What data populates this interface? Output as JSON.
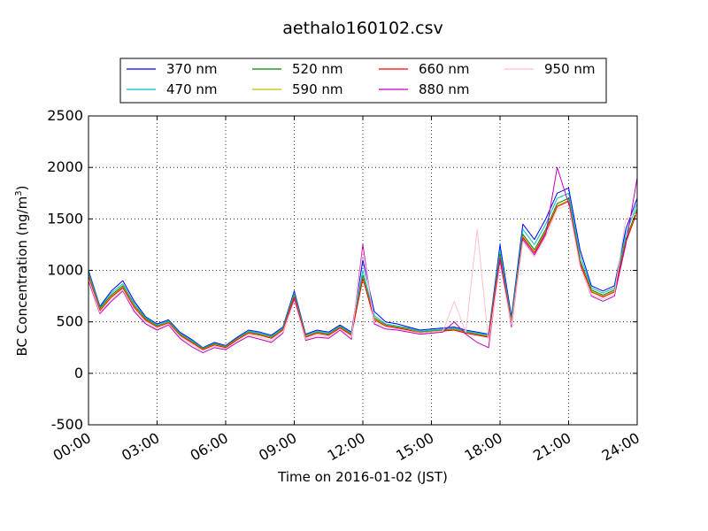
{
  "chart_data": {
    "type": "line",
    "title": "aethalo160102.csv",
    "xlabel": "Time on 2016-01-02 (JST)",
    "ylabel_main": "BC Concentration (ng/m",
    "ylabel_sup": "3",
    "ylabel_close": ")",
    "xlim": [
      "00:00",
      "24:00"
    ],
    "ylim": [
      -500,
      2500
    ],
    "grid": true,
    "legend_position": "top-center",
    "x_ticks": [
      "00:00",
      "03:00",
      "06:00",
      "09:00",
      "12:00",
      "15:00",
      "18:00",
      "21:00",
      "24:00"
    ],
    "y_ticks": [
      -500,
      0,
      500,
      1000,
      1500,
      2000,
      2500
    ],
    "x": [
      "00:00",
      "00:30",
      "01:00",
      "01:30",
      "02:00",
      "02:30",
      "03:00",
      "03:30",
      "04:00",
      "04:30",
      "05:00",
      "05:30",
      "06:00",
      "06:30",
      "07:00",
      "07:30",
      "08:00",
      "08:30",
      "09:00",
      "09:30",
      "10:00",
      "10:30",
      "11:00",
      "11:30",
      "12:00",
      "12:30",
      "13:00",
      "13:30",
      "14:00",
      "14:30",
      "15:00",
      "15:30",
      "16:00",
      "16:30",
      "17:00",
      "17:30",
      "18:00",
      "18:30",
      "19:00",
      "19:30",
      "20:00",
      "20:30",
      "21:00",
      "21:30",
      "22:00",
      "22:30",
      "23:00",
      "23:30",
      "24:00"
    ],
    "series": [
      {
        "name": "370 nm",
        "color": "#0000ff",
        "values": [
          1000,
          650,
          800,
          900,
          700,
          550,
          480,
          520,
          400,
          330,
          250,
          300,
          270,
          350,
          420,
          400,
          370,
          450,
          800,
          380,
          420,
          400,
          470,
          400,
          1100,
          600,
          500,
          480,
          450,
          420,
          430,
          440,
          450,
          420,
          400,
          380,
          1250,
          550,
          1450,
          1300,
          1500,
          1750,
          1800,
          1200,
          850,
          800,
          850,
          1400,
          1700
        ]
      },
      {
        "name": "470 nm",
        "color": "#00bfbf",
        "values": [
          980,
          640,
          780,
          870,
          680,
          540,
          470,
          510,
          390,
          320,
          245,
          290,
          265,
          340,
          410,
          390,
          360,
          440,
          780,
          370,
          410,
          390,
          460,
          390,
          1000,
          560,
          480,
          460,
          440,
          410,
          420,
          430,
          440,
          410,
          390,
          370,
          1200,
          520,
          1400,
          1250,
          1450,
          1700,
          1750,
          1150,
          830,
          780,
          830,
          1350,
          1650
        ]
      },
      {
        "name": "520 nm",
        "color": "#008000",
        "values": [
          960,
          630,
          760,
          850,
          660,
          530,
          460,
          500,
          380,
          310,
          240,
          285,
          260,
          335,
          400,
          380,
          350,
          430,
          760,
          360,
          400,
          380,
          450,
          380,
          950,
          540,
          470,
          450,
          430,
          400,
          410,
          420,
          430,
          400,
          380,
          360,
          1150,
          500,
          1350,
          1200,
          1400,
          1650,
          1700,
          1100,
          810,
          760,
          810,
          1300,
          1600
        ]
      },
      {
        "name": "590 nm",
        "color": "#bfbf00",
        "values": [
          950,
          620,
          750,
          840,
          650,
          520,
          455,
          495,
          375,
          305,
          235,
          280,
          255,
          330,
          395,
          375,
          345,
          425,
          750,
          355,
          395,
          375,
          445,
          375,
          930,
          530,
          465,
          445,
          425,
          395,
          405,
          415,
          425,
          395,
          375,
          355,
          1130,
          490,
          1330,
          1180,
          1380,
          1630,
          1680,
          1080,
          800,
          750,
          800,
          1280,
          1580
        ]
      },
      {
        "name": "660 nm",
        "color": "#ff0000",
        "values": [
          940,
          610,
          740,
          830,
          640,
          515,
          450,
          490,
          370,
          300,
          230,
          275,
          250,
          325,
          390,
          370,
          340,
          420,
          740,
          350,
          390,
          370,
          440,
          370,
          920,
          520,
          460,
          440,
          420,
          390,
          400,
          410,
          420,
          390,
          370,
          350,
          1120,
          480,
          1320,
          1170,
          1370,
          1620,
          1670,
          1070,
          790,
          740,
          790,
          1270,
          1570
        ]
      },
      {
        "name": "880 nm",
        "color": "#bf00bf",
        "values": [
          900,
          580,
          700,
          800,
          600,
          480,
          420,
          470,
          340,
          260,
          200,
          250,
          230,
          300,
          360,
          330,
          300,
          390,
          720,
          320,
          350,
          340,
          420,
          330,
          1250,
          480,
          430,
          420,
          400,
          380,
          390,
          400,
          500,
          380,
          300,
          250,
          1100,
          450,
          1300,
          1150,
          1350,
          2000,
          1650,
          1050,
          750,
          700,
          750,
          1250,
          1900
        ]
      },
      {
        "name": "950 nm",
        "color": "#ffc0cb",
        "values": [
          920,
          590,
          720,
          810,
          620,
          500,
          430,
          480,
          360,
          280,
          220,
          265,
          240,
          310,
          370,
          350,
          320,
          400,
          700,
          330,
          370,
          350,
          430,
          350,
          1200,
          500,
          450,
          430,
          410,
          390,
          400,
          410,
          700,
          400,
          1400,
          300,
          1050,
          470,
          1280,
          1130,
          1330,
          1600,
          1630,
          1040,
          760,
          720,
          770,
          1500,
          1550
        ]
      }
    ]
  }
}
